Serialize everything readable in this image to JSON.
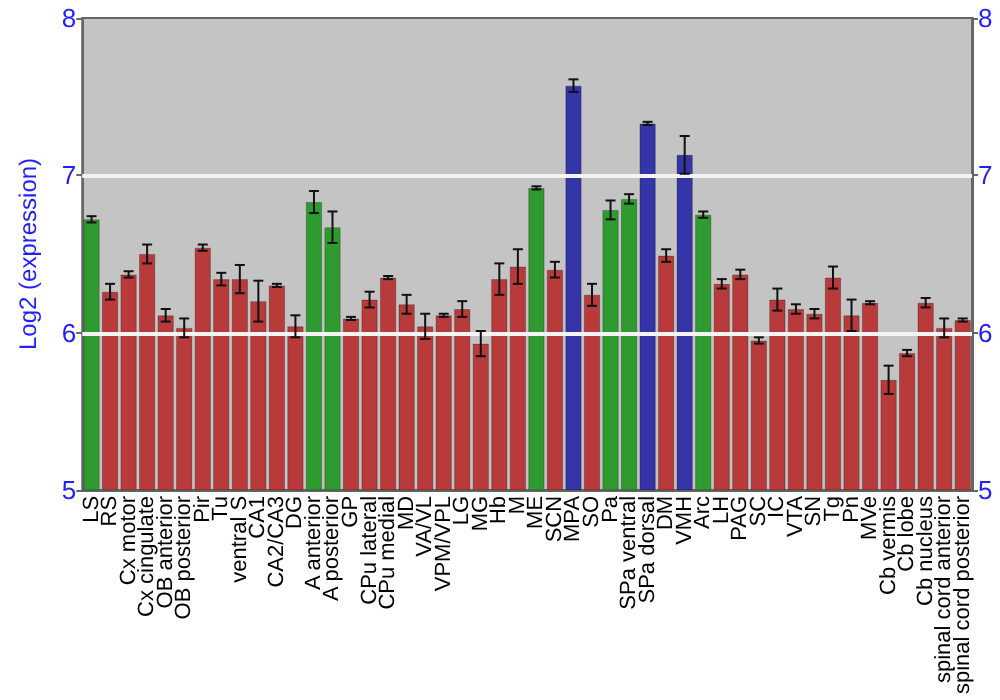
{
  "chart_data": {
    "type": "bar",
    "ylabel": "Log2 (expression)",
    "categories": [
      "LS",
      "RS",
      "Cx motor",
      "Cx cingulate",
      "OB anterior",
      "OB posterior",
      "Pir",
      "Tu",
      "ventral S",
      "CA1",
      "CA2/CA3",
      "DG",
      "A anterior",
      "A posterior",
      "GP",
      "CPu lateral",
      "CPu medial",
      "MD",
      "VA/VL",
      "VPM/VPL",
      "LG",
      "MG",
      "Hb",
      "M",
      "ME",
      "SCN",
      "MPA",
      "SO",
      "Pa",
      "SPa ventral",
      "SPa dorsal",
      "DM",
      "VMH",
      "Arc",
      "LH",
      "PAG",
      "SC",
      "IC",
      "VTA",
      "SN",
      "Tg",
      "Pn",
      "MVe",
      "Cb vermis",
      "Cb lobe",
      "Cb nucleus",
      "spinal cord anterior",
      "spinal cord posterior"
    ],
    "values": [
      6.72,
      6.26,
      6.37,
      6.5,
      6.11,
      6.03,
      6.54,
      6.34,
      6.34,
      6.2,
      6.3,
      6.04,
      6.83,
      6.67,
      6.09,
      6.21,
      6.35,
      6.18,
      6.04,
      6.11,
      6.15,
      5.93,
      6.34,
      6.42,
      6.92,
      6.4,
      7.57,
      6.24,
      6.78,
      6.85,
      7.33,
      6.49,
      7.13,
      6.75,
      6.31,
      6.37,
      5.95,
      6.21,
      6.15,
      6.12,
      6.35,
      6.11,
      6.19,
      5.7,
      5.87,
      6.19,
      6.03,
      6.08
    ],
    "errors": [
      0.02,
      0.05,
      0.02,
      0.06,
      0.04,
      0.06,
      0.02,
      0.04,
      0.09,
      0.13,
      0.01,
      0.07,
      0.07,
      0.1,
      0.01,
      0.05,
      0.01,
      0.06,
      0.08,
      0.01,
      0.05,
      0.08,
      0.1,
      0.11,
      0.01,
      0.05,
      0.04,
      0.07,
      0.06,
      0.03,
      0.01,
      0.04,
      0.12,
      0.02,
      0.03,
      0.03,
      0.02,
      0.07,
      0.03,
      0.03,
      0.07,
      0.1,
      0.01,
      0.09,
      0.02,
      0.03,
      0.06,
      0.01
    ],
    "colors": [
      "#2f9a2f",
      "#b83a3a",
      "#b83a3a",
      "#b83a3a",
      "#b83a3a",
      "#b83a3a",
      "#b83a3a",
      "#b83a3a",
      "#b83a3a",
      "#b83a3a",
      "#b83a3a",
      "#b83a3a",
      "#2f9a2f",
      "#2f9a2f",
      "#b83a3a",
      "#b83a3a",
      "#b83a3a",
      "#b83a3a",
      "#b83a3a",
      "#b83a3a",
      "#b83a3a",
      "#b83a3a",
      "#b83a3a",
      "#b83a3a",
      "#2f9a2f",
      "#b83a3a",
      "#3535a8",
      "#b83a3a",
      "#2f9a2f",
      "#2f9a2f",
      "#3535a8",
      "#b83a3a",
      "#3535a8",
      "#2f9a2f",
      "#b83a3a",
      "#b83a3a",
      "#b83a3a",
      "#b83a3a",
      "#b83a3a",
      "#b83a3a",
      "#b83a3a",
      "#b83a3a",
      "#b83a3a",
      "#b83a3a",
      "#b83a3a",
      "#b83a3a",
      "#b83a3a",
      "#b83a3a"
    ],
    "ylim": [
      5,
      8
    ],
    "yticks": [
      5,
      6,
      7,
      8
    ],
    "y2lim": [
      5,
      8
    ],
    "y2ticks": [
      5,
      6,
      7,
      8
    ],
    "grid": "y"
  }
}
